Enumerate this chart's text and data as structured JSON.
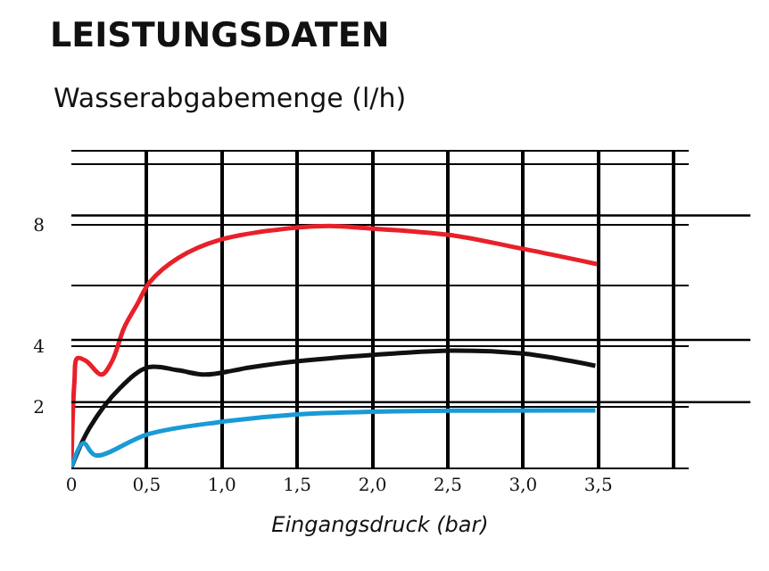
{
  "chart_data": {
    "type": "line",
    "title": "LEISTUNGSDATEN",
    "subtitle": "Wasserabgabemenge (l/h)",
    "xlabel": "Eingangsdruck (bar)",
    "xlim": [
      0,
      4.1
    ],
    "xticks": [
      0,
      {
        "value": 0.5,
        "label": "0,5"
      },
      {
        "value": 1,
        "label": "1,0"
      },
      {
        "value": 1.5,
        "label": "1,5"
      },
      {
        "value": 2,
        "label": "2,0"
      },
      {
        "value": 2.5,
        "label": "2,5"
      },
      {
        "value": 3,
        "label": "3,0"
      },
      {
        "value": 3.5,
        "label": "3,5"
      },
      {
        "value": 4,
        "label": null
      }
    ],
    "ylim": [
      0,
      10.4
    ],
    "yticks": [
      {
        "value": 0,
        "label": null
      },
      2,
      4,
      {
        "value": 6,
        "label": null
      },
      8,
      {
        "value": 10,
        "label": null
      }
    ],
    "grid": true,
    "legend": false,
    "marker": "none",
    "line_style": "solid",
    "ref_lines": [
      {
        "axis": "y",
        "value": 8.3,
        "color": "#000000"
      },
      {
        "axis": "y",
        "value": 4.2,
        "color": "#000000"
      },
      {
        "axis": "y",
        "value": 2.15,
        "color": "#000000"
      }
    ],
    "series": [
      {
        "color": "#e8202a",
        "x": [
          0,
          0.02,
          0.04,
          0.1,
          0.2,
          0.27,
          0.35,
          0.44,
          0.52,
          0.71,
          0.99,
          1.5,
          1.75,
          1.9,
          2.52,
          3.0,
          3.49
        ],
        "values": [
          0,
          2.8,
          3.6,
          3.5,
          3.06,
          3.5,
          4.6,
          5.4,
          6.1,
          6.9,
          7.5,
          7.9,
          7.95,
          7.9,
          7.65,
          7.2,
          6.7
        ]
      },
      {
        "color": "#111111",
        "x": [
          0,
          0.12,
          0.32,
          0.51,
          0.71,
          0.89,
          1.19,
          1.51,
          2.14,
          2.52,
          3.0,
          3.48
        ],
        "values": [
          0,
          1.3,
          2.6,
          3.3,
          3.2,
          3.06,
          3.3,
          3.5,
          3.75,
          3.85,
          3.75,
          3.35
        ]
      },
      {
        "color": "#1a9ad6",
        "x": [
          0,
          0.08,
          0.16,
          0.51,
          0.99,
          1.5,
          2.14,
          3.48
        ],
        "values": [
          0,
          0.8,
          0.4,
          1.1,
          1.5,
          1.75,
          1.85,
          1.88
        ]
      }
    ]
  }
}
